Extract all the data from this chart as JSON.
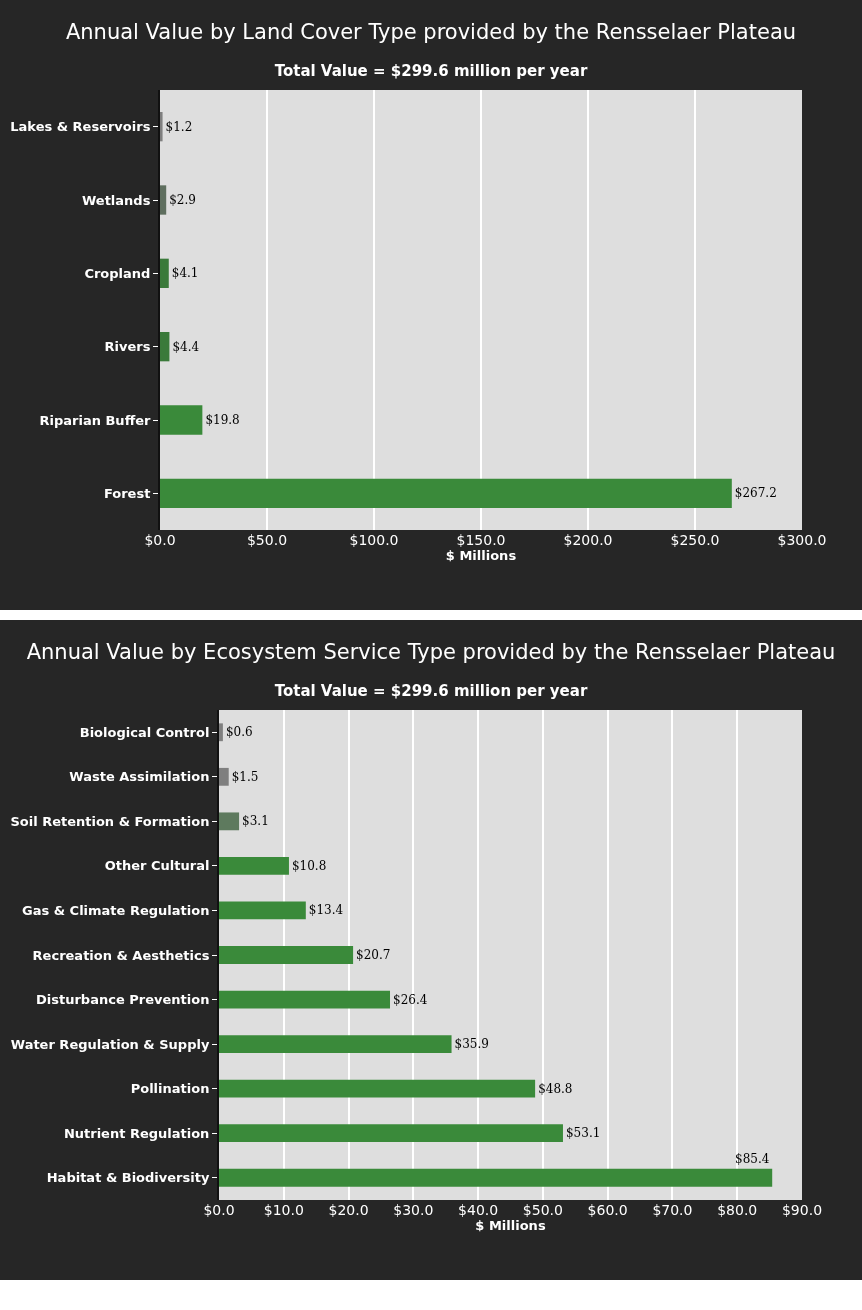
{
  "chart_data": [
    {
      "type": "bar",
      "orientation": "horizontal",
      "title": "Annual Value by Land Cover Type provided by the Rensselaer Plateau",
      "subtitle": "Total Value = $299.6 million per year",
      "xlabel": "$ Millions",
      "categories": [
        "Lakes & Reservoirs",
        "Wetlands",
        "Cropland",
        "Rivers",
        "Riparian Buffer",
        "Forest"
      ],
      "values": [
        1.2,
        2.9,
        4.1,
        4.4,
        19.8,
        267.2
      ],
      "colors": [
        "#7f7f7f",
        "#5e6e5e",
        "#3a7a3a",
        "#3a7a3a",
        "#3a8a3a",
        "#3a8a3a"
      ],
      "value_labels": [
        "$1.2",
        "$2.9",
        "$4.1",
        "$4.4",
        "$19.8",
        "$267.2"
      ],
      "xlim": [
        0,
        300
      ],
      "xticks": [
        {
          "value": 0,
          "label": "$0.0"
        },
        {
          "value": 50,
          "label": "$50.0"
        },
        {
          "value": 100,
          "label": "$100.0"
        },
        {
          "value": 150,
          "label": "$150.0"
        },
        {
          "value": 200,
          "label": "$200.0"
        },
        {
          "value": 250,
          "label": "$250.0"
        },
        {
          "value": 300,
          "label": "$300.0"
        }
      ],
      "grid": "x",
      "legend": false
    },
    {
      "type": "bar",
      "orientation": "horizontal",
      "title": "Annual Value by Ecosystem Service Type provided by the Rensselaer Plateau",
      "subtitle": "Total Value = $299.6 million per year",
      "xlabel": "$ Millions",
      "categories": [
        "Biological Control",
        "Waste Assimilation",
        "Soil Retention & Formation",
        "Other Cultural",
        "Gas & Climate Regulation",
        "Recreation & Aesthetics",
        "Disturbance Prevention",
        "Water Regulation & Supply",
        "Pollination",
        "Nutrient Regulation",
        "Habitat & Biodiversity"
      ],
      "values": [
        0.6,
        1.5,
        3.1,
        10.8,
        13.4,
        20.7,
        26.4,
        35.9,
        48.8,
        53.1,
        85.4
      ],
      "colors": [
        "#7f7f7f",
        "#7f7f7f",
        "#5e7a5e",
        "#3a8a3a",
        "#3a8a3a",
        "#3a8a3a",
        "#3a8a3a",
        "#3a8a3a",
        "#3a8a3a",
        "#3a8a3a",
        "#3a8a3a"
      ],
      "value_labels": [
        "$0.6",
        "$1.5",
        "$3.1",
        "$10.8",
        "$13.4",
        "$20.7",
        "$26.4",
        "$35.9",
        "$48.8",
        "$53.1",
        "$85.4"
      ],
      "xlim": [
        0,
        90
      ],
      "xticks": [
        {
          "value": 0,
          "label": "$0.0"
        },
        {
          "value": 10,
          "label": "$10.0"
        },
        {
          "value": 20,
          "label": "$20.0"
        },
        {
          "value": 30,
          "label": "$30.0"
        },
        {
          "value": 40,
          "label": "$40.0"
        },
        {
          "value": 50,
          "label": "$50.0"
        },
        {
          "value": 60,
          "label": "$60.0"
        },
        {
          "value": 70,
          "label": "$70.0"
        },
        {
          "value": 80,
          "label": "$80.0"
        },
        {
          "value": 90,
          "label": "$90.0"
        }
      ],
      "grid": "x",
      "legend": false
    }
  ]
}
